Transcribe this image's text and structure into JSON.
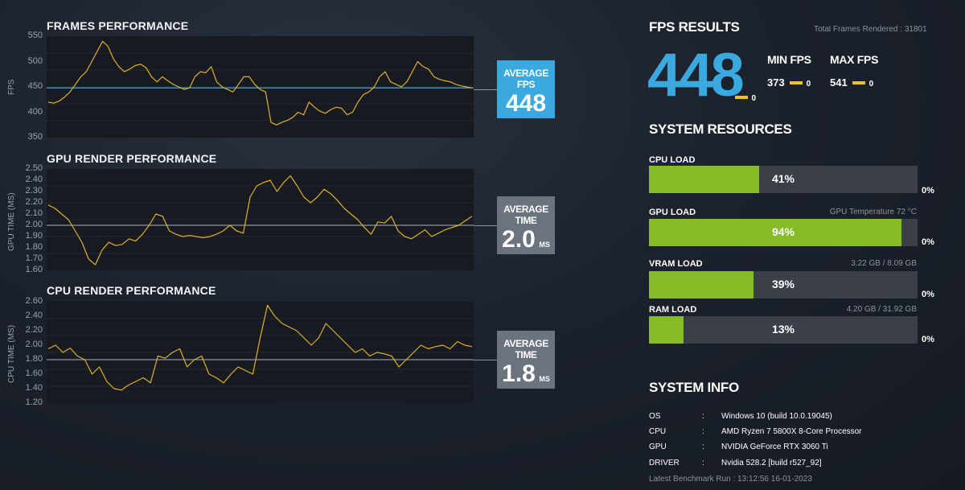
{
  "frames": {
    "title": "FRAMES PERFORMANCE",
    "ylabel": "FPS",
    "ticks": [
      "550",
      "500",
      "450",
      "400",
      "350"
    ],
    "avg_label": "AVERAGE FPS",
    "avg_value": "448",
    "color": "#3aa9e0"
  },
  "gpu": {
    "title": "GPU RENDER PERFORMANCE",
    "ylabel": "GPU TIME (MS)",
    "ticks": [
      "2.50",
      "2.40",
      "2.30",
      "2.20",
      "2.10",
      "2.00",
      "1.90",
      "1.80",
      "1.70",
      "1.60"
    ],
    "avg_label": "AVERAGE TIME",
    "avg_value": "2.0",
    "avg_unit": "MS"
  },
  "cpu": {
    "title": "CPU RENDER PERFORMANCE",
    "ylabel": "CPU TIME (MS)",
    "ticks": [
      "2.60",
      "2.40",
      "2.20",
      "2.00",
      "1.80",
      "1.60",
      "1.40",
      "1.20"
    ],
    "avg_label": "AVERAGE TIME",
    "avg_value": "1.8",
    "avg_unit": "MS"
  },
  "fps_results": {
    "title": "FPS RESULTS",
    "total_frames": "Total Frames Rendered : 31801",
    "avg_value": "448",
    "avg_zero": "0",
    "min_label": "MIN FPS",
    "min_value": "373",
    "min_zero": "0",
    "max_label": "MAX FPS",
    "max_value": "541",
    "max_zero": "0"
  },
  "resources": {
    "title": "SYSTEM RESOURCES",
    "items": [
      {
        "label": "CPU LOAD",
        "detail": "",
        "pct_text": "41%",
        "pct": 41,
        "zero": "0%"
      },
      {
        "label": "GPU LOAD",
        "detail": "GPU Temperature 72 °C",
        "pct_text": "94%",
        "pct": 94,
        "zero": "0%"
      },
      {
        "label": "VRAM LOAD",
        "detail": "3.22 GB / 8.09 GB",
        "pct_text": "39%",
        "pct": 39,
        "zero": "0%"
      },
      {
        "label": "RAM LOAD",
        "detail": "4.20 GB / 31.92 GB",
        "pct_text": "13%",
        "pct": 13,
        "zero": "0%"
      }
    ]
  },
  "system_info": {
    "title": "SYSTEM INFO",
    "rows": [
      {
        "key": "OS",
        "sep": ":",
        "value": "Windows 10 (build 10.0.19045)"
      },
      {
        "key": "CPU",
        "sep": ":",
        "value": "AMD Ryzen 7 5800X 8-Core Processor"
      },
      {
        "key": "GPU",
        "sep": ":",
        "value": "NVIDIA GeForce RTX 3060 Ti"
      },
      {
        "key": "DRIVER",
        "sep": ":",
        "value": "Nvidia 528.2 [build r527_92]"
      }
    ],
    "latest_run": "Latest Benchmark Run : 13:12:56 16-01-2023"
  },
  "colors": {
    "accent_blue": "#3aa9e0",
    "bar_green": "#86bc25",
    "yellow": "#f2c314",
    "line_yellow": "#e0b020",
    "avg_gray": "#6b737e"
  },
  "chart_data": [
    {
      "type": "line",
      "title": "FRAMES PERFORMANCE",
      "ylabel": "FPS",
      "ylim": [
        350,
        550
      ],
      "average": 448,
      "y": [
        420,
        418,
        422,
        430,
        440,
        455,
        470,
        480,
        500,
        520,
        540,
        530,
        505,
        490,
        480,
        485,
        492,
        495,
        488,
        470,
        460,
        470,
        462,
        455,
        450,
        445,
        448,
        470,
        480,
        478,
        490,
        460,
        450,
        445,
        440,
        455,
        470,
        470,
        455,
        445,
        440,
        380,
        375,
        380,
        384,
        390,
        400,
        395,
        420,
        410,
        402,
        398,
        405,
        410,
        408,
        395,
        400,
        420,
        435,
        440,
        450,
        470,
        480,
        460,
        455,
        450,
        460,
        480,
        500,
        490,
        485,
        470,
        465,
        462,
        460,
        455,
        452,
        450,
        448
      ]
    },
    {
      "type": "line",
      "title": "GPU RENDER PERFORMANCE",
      "ylabel": "GPU TIME (MS)",
      "ylim": [
        1.6,
        2.5
      ],
      "average": 2.0,
      "y": [
        2.18,
        2.15,
        2.1,
        2.05,
        1.95,
        1.85,
        1.7,
        1.65,
        1.78,
        1.85,
        1.82,
        1.83,
        1.88,
        1.86,
        1.92,
        2.0,
        2.1,
        2.08,
        1.95,
        1.92,
        1.9,
        1.91,
        1.9,
        1.89,
        1.9,
        1.92,
        1.95,
        2.0,
        1.95,
        1.93,
        2.25,
        2.35,
        2.38,
        2.4,
        2.3,
        2.38,
        2.44,
        2.35,
        2.25,
        2.2,
        2.25,
        2.32,
        2.28,
        2.22,
        2.15,
        2.1,
        2.05,
        1.98,
        1.92,
        2.03,
        2.02,
        2.08,
        1.95,
        1.9,
        1.88,
        1.92,
        1.96,
        1.9,
        1.93,
        1.96,
        1.98,
        2.0,
        2.04,
        2.08
      ]
    },
    {
      "type": "line",
      "title": "CPU RENDER PERFORMANCE",
      "ylabel": "CPU TIME (MS)",
      "ylim": [
        1.2,
        2.6
      ],
      "average": 1.8,
      "y": [
        1.95,
        2.0,
        1.9,
        1.96,
        1.85,
        1.8,
        1.6,
        1.7,
        1.5,
        1.4,
        1.38,
        1.45,
        1.5,
        1.55,
        1.48,
        1.85,
        1.82,
        1.9,
        1.95,
        1.7,
        1.8,
        1.85,
        1.6,
        1.55,
        1.48,
        1.6,
        1.7,
        1.65,
        1.6,
        2.1,
        2.55,
        2.4,
        2.3,
        2.25,
        2.2,
        2.1,
        2.0,
        2.1,
        2.3,
        2.2,
        2.1,
        2.0,
        1.9,
        1.95,
        1.85,
        1.9,
        1.88,
        1.85,
        1.7,
        1.8,
        1.9,
        2.0,
        1.95,
        1.98,
        2.0,
        1.95,
        2.05,
        2.0,
        1.98
      ]
    }
  ]
}
